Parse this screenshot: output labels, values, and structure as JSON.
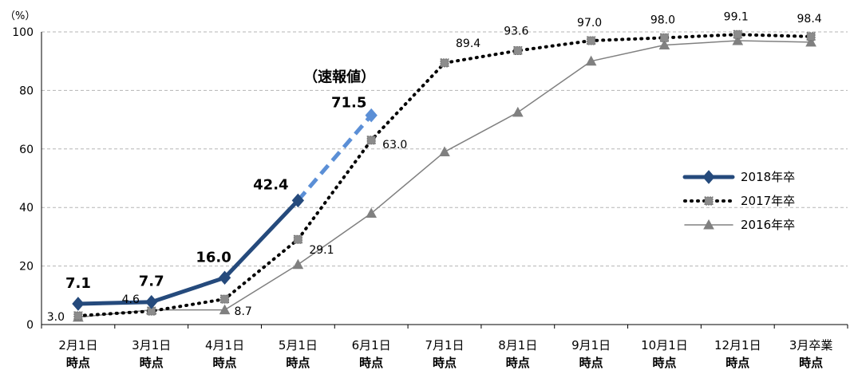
{
  "chart_data": {
    "type": "line",
    "unit_label": "（%）",
    "ylim": [
      0,
      100
    ],
    "yticks": [
      0,
      20,
      40,
      60,
      80,
      100
    ],
    "grid": true,
    "legend_position": "right",
    "categories": [
      [
        "2月1日",
        "時点"
      ],
      [
        "3月1日",
        "時点"
      ],
      [
        "4月1日",
        "時点"
      ],
      [
        "5月1日",
        "時点"
      ],
      [
        "6月1日",
        "時点"
      ],
      [
        "7月1日",
        "時点"
      ],
      [
        "8月1日",
        "時点"
      ],
      [
        "9月1日",
        "時点"
      ],
      [
        "10月1日",
        "時点"
      ],
      [
        "12月1日",
        "時点"
      ],
      [
        "3月卒業",
        "時点"
      ]
    ],
    "series": [
      {
        "name": "2018年卒",
        "color": "#254a7c",
        "style": "solid-thick",
        "marker": "diamond",
        "values": [
          7.1,
          7.7,
          16.0,
          42.4,
          null,
          null,
          null,
          null,
          null,
          null,
          null
        ],
        "labels": [
          "7.1",
          "7.7",
          "16.0",
          "42.4",
          null,
          null,
          null,
          null,
          null,
          null,
          null
        ]
      },
      {
        "name": "2017年卒",
        "color": "#000000",
        "style": "dotted",
        "marker": "square",
        "values": [
          3.0,
          4.6,
          8.7,
          29.1,
          63.0,
          89.4,
          93.6,
          97.0,
          98.0,
          99.1,
          98.4
        ],
        "labels": [
          "3.0",
          "4.6",
          "8.7",
          "29.1",
          "63.0",
          "89.4",
          "93.6",
          "97.0",
          "98.0",
          "99.1",
          "98.4"
        ]
      },
      {
        "name": "2016年卒",
        "color": "#808080",
        "style": "solid-thin",
        "marker": "triangle",
        "values": [
          2.5,
          5.0,
          5.0,
          20.5,
          38.0,
          59.0,
          72.5,
          90.0,
          95.5,
          97.0,
          96.5
        ]
      }
    ],
    "preliminary": {
      "color": "#5b8fd6",
      "from_index": 3,
      "to_index": 4,
      "from_value": 42.4,
      "value": 71.5,
      "label": "71.5",
      "note": "（速報値）"
    }
  }
}
